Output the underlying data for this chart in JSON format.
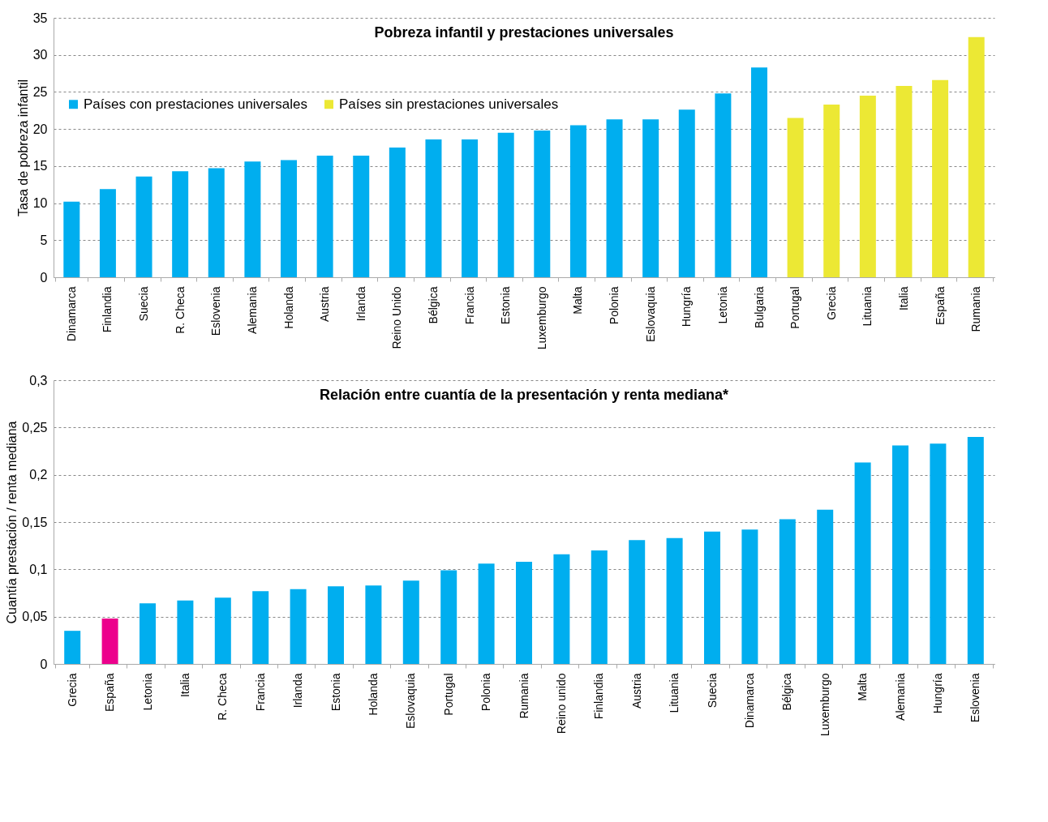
{
  "chart_data": [
    {
      "type": "bar",
      "title": "Pobreza infantil y prestaciones universales",
      "ylabel": "Tasa de pobreza infantil",
      "categories": [
        "Dinamarca",
        "Finlandia",
        "Suecia",
        "R. Checa",
        "Eslovenia",
        "Alemania",
        "Holanda",
        "Austria",
        "Irlanda",
        "Reino Unido",
        "Bélgica",
        "Francia",
        "Estonia",
        "Luxemburgo",
        "Malta",
        "Polonia",
        "Eslovaquia",
        "Hungría",
        "Letonia",
        "Bulgaria",
        "Portugal",
        "Grecia",
        "Lituania",
        "Italia",
        "España",
        "Rumania"
      ],
      "series": [
        {
          "name": "Países con prestaciones universales",
          "color": "#00aeef",
          "values": [
            10.2,
            11.9,
            13.6,
            14.3,
            14.7,
            15.6,
            15.8,
            16.4,
            16.4,
            17.5,
            18.6,
            18.6,
            19.5,
            19.8,
            20.5,
            21.3,
            21.3,
            22.6,
            24.8,
            28.3,
            null,
            null,
            null,
            null,
            null,
            null
          ]
        },
        {
          "name": "Países sin prestaciones universales",
          "color": "#ece834",
          "values": [
            null,
            null,
            null,
            null,
            null,
            null,
            null,
            null,
            null,
            null,
            null,
            null,
            null,
            null,
            null,
            null,
            null,
            null,
            null,
            null,
            21.5,
            23.3,
            24.5,
            25.8,
            26.6,
            32.4
          ]
        }
      ],
      "ylim": [
        0,
        35
      ],
      "yticks": [
        0,
        5,
        10,
        15,
        20,
        25,
        30,
        35
      ],
      "grid": "y",
      "legend": "top left"
    },
    {
      "type": "bar",
      "title": "Relación entre cuantía de la presentación y renta mediana*",
      "ylabel": "Cuantía prestación / renta mediana",
      "categories": [
        "Grecia",
        "España",
        "Letonia",
        "Italia",
        "R. Checa",
        "Francia",
        "Irlanda",
        "Estonia",
        "Holanda",
        "Eslovaquia",
        "Portugal",
        "Polonia",
        "Rumania",
        "Reino unido",
        "Finlandia",
        "Austria",
        "Lituania",
        "Suecia",
        "Dinamarca",
        "Bélgica",
        "Luxemburgo",
        "Malta",
        "Alemania",
        "Hungría",
        "Eslovenia"
      ],
      "values": [
        0.035,
        0.048,
        0.064,
        0.067,
        0.07,
        0.077,
        0.079,
        0.082,
        0.083,
        0.088,
        0.099,
        0.106,
        0.108,
        0.116,
        0.12,
        0.131,
        0.133,
        0.14,
        0.142,
        0.153,
        0.163,
        0.213,
        0.231,
        0.233,
        0.24
      ],
      "colors": [
        "#00aeef",
        "#ec008c",
        "#00aeef",
        "#00aeef",
        "#00aeef",
        "#00aeef",
        "#00aeef",
        "#00aeef",
        "#00aeef",
        "#00aeef",
        "#00aeef",
        "#00aeef",
        "#00aeef",
        "#00aeef",
        "#00aeef",
        "#00aeef",
        "#00aeef",
        "#00aeef",
        "#00aeef",
        "#00aeef",
        "#00aeef",
        "#00aeef",
        "#00aeef",
        "#00aeef",
        "#00aeef"
      ],
      "ylim": [
        0,
        0.3
      ],
      "yticks": [
        0,
        {
          "value": 0.05,
          "label": "0,05"
        },
        {
          "value": 0.1,
          "label": "0,1"
        },
        {
          "value": 0.15,
          "label": "0,15"
        },
        {
          "value": 0.2,
          "label": "0,2"
        },
        {
          "value": 0.25,
          "label": "0,25"
        },
        {
          "value": 0.3,
          "label": "0,3"
        }
      ],
      "grid": "y"
    }
  ]
}
